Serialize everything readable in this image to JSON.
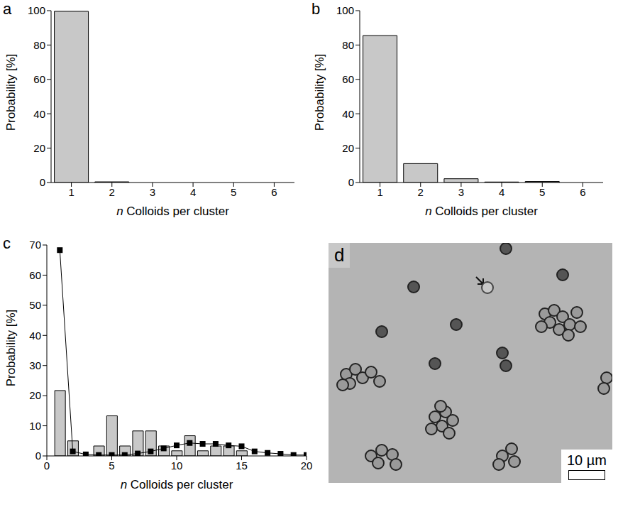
{
  "chart_data": [
    {
      "panel": "a",
      "type": "bar",
      "x_label": "n Colloids per cluster",
      "y_label": "Probability [%]",
      "categories": [
        "1",
        "2",
        "3",
        "4",
        "5",
        "6"
      ],
      "values": [
        99.6,
        0.4,
        0,
        0,
        0,
        0
      ],
      "color": "#c8c8c8",
      "ylim": [
        0,
        100
      ],
      "yticks": [
        0,
        20,
        40,
        60,
        80,
        100
      ],
      "grid": false
    },
    {
      "panel": "b",
      "type": "bar",
      "x_label": "n Colloids per cluster",
      "y_label": "Probability [%]",
      "categories": [
        "1",
        "2",
        "3",
        "4",
        "5",
        "6"
      ],
      "values": [
        85.5,
        11,
        2.2,
        0.3,
        0.6,
        0
      ],
      "color": "#c8c8c8",
      "ylim": [
        0,
        100
      ],
      "yticks": [
        0,
        20,
        40,
        60,
        80,
        100
      ],
      "grid": false
    },
    {
      "panel": "c",
      "type": "bar",
      "x_label": "n Colloids per cluster",
      "y_label": "Probability [%]",
      "x": [
        1,
        2,
        3,
        4,
        5,
        6,
        7,
        8,
        9,
        10,
        11,
        12,
        13,
        14,
        15,
        16,
        17,
        18,
        19,
        20
      ],
      "xlim": [
        0,
        20
      ],
      "xticks": [
        0,
        5,
        10,
        15,
        20
      ],
      "ylim": [
        0,
        70
      ],
      "yticks": [
        0,
        10,
        20,
        30,
        40,
        50,
        60,
        70
      ],
      "grid": false,
      "series": [
        {
          "type": "bar",
          "color": "#c8c8c8",
          "values": [
            21.7,
            5,
            0,
            3.3,
            13.3,
            3.3,
            8.3,
            8.3,
            3.3,
            1.7,
            6.7,
            1.7,
            3.3,
            3.3,
            1.7,
            0,
            0,
            0,
            0,
            0
          ]
        },
        {
          "type": "line",
          "color": "#000000",
          "marker": "square",
          "line_style": "solid",
          "values": [
            68.3,
            1.5,
            0.5,
            0.3,
            0.3,
            0.3,
            0.8,
            1.5,
            2.5,
            3.5,
            4.3,
            4,
            4,
            3.5,
            3.2,
            1.5,
            1,
            0.7,
            0.3,
            0.3
          ]
        }
      ]
    }
  ],
  "image": {
    "panel": "d",
    "scale_bar": "10 µm"
  }
}
